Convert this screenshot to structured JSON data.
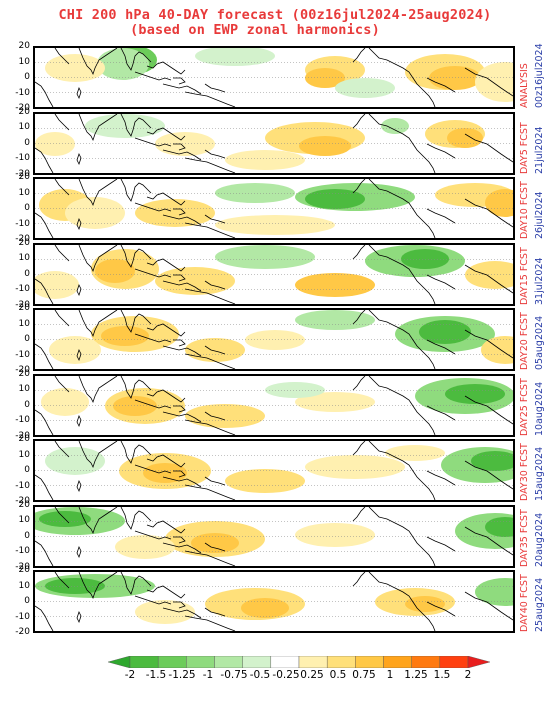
{
  "title": {
    "line1": "CHI 200 hPa 40-DAY forecast (00z16jul2024-25aug2024)",
    "line2": "(based on EWP zonal harmonics)"
  },
  "y_ticks": [
    "20",
    "10",
    "0",
    "-10",
    "-20"
  ],
  "panels": [
    {
      "label": "ANALYSIS",
      "date": "00z16jul2024"
    },
    {
      "label": "DAY5 FCST",
      "date": "21jul2024"
    },
    {
      "label": "DAY10 FCST",
      "date": "26jul2024"
    },
    {
      "label": "DAY15 FCST",
      "date": "31jul2024"
    },
    {
      "label": "DAY20 FCST",
      "date": "05aug2024"
    },
    {
      "label": "DAY25 FCST",
      "date": "10aug2024"
    },
    {
      "label": "DAY30 FCST",
      "date": "15aug2024"
    },
    {
      "label": "DAY35 FCST",
      "date": "20aug2024"
    },
    {
      "label": "DAY40 FCST",
      "date": "25aug2024"
    }
  ],
  "colorbar": {
    "labels": [
      "-2",
      "-1.5",
      "-1.25",
      "-1",
      "-0.75",
      "-0.5",
      "-0.25",
      "0.25",
      "0.5",
      "0.75",
      "1",
      "1.25",
      "1.5",
      "2"
    ],
    "colors": [
      "#2ea82e",
      "#4cbb3f",
      "#6ccc5a",
      "#8fdb7e",
      "#b2e8a5",
      "#d3f2cc",
      "#ffffff",
      "#fff0b0",
      "#ffe07a",
      "#ffc846",
      "#ffa41c",
      "#ff7a10",
      "#ff4010",
      "#e81e1e"
    ]
  }
}
